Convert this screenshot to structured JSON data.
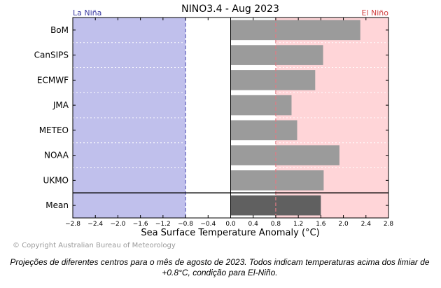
{
  "chart_data": {
    "type": "bar",
    "orientation": "horizontal",
    "title": "NINO3.4 - Aug 2023",
    "xlabel": "Sea Surface Temperature Anomaly (°C)",
    "ylabel": "",
    "xlim": [
      -2.8,
      2.8
    ],
    "xticks": [
      -2.8,
      -2.4,
      -2.0,
      -1.6,
      -1.2,
      -0.8,
      -0.4,
      0.0,
      0.4,
      0.8,
      1.2,
      1.6,
      2.0,
      2.4,
      2.8
    ],
    "xtick_labels": [
      "−2.8",
      "−2.4",
      "−2.0",
      "−1.6",
      "−1.2",
      "−0.8",
      "−0.4",
      "0.0",
      "0.4",
      "0.8",
      "1.2",
      "1.6",
      "2.0",
      "2.4",
      "2.8"
    ],
    "categories": [
      "BoM",
      "CanSIPS",
      "ECMWF",
      "JMA",
      "METEO",
      "NOAA",
      "UKMO",
      "Mean"
    ],
    "values": [
      2.3,
      1.64,
      1.5,
      1.08,
      1.18,
      1.93,
      1.65,
      1.6
    ],
    "thresholds": {
      "la_nina": -0.8,
      "el_nino": 0.8
    },
    "regions": [
      {
        "label": "La Niña",
        "from": -2.8,
        "to": -0.8,
        "color": "#c0c0ec",
        "label_color": "#3a3aa0"
      },
      {
        "label": "El Niño",
        "from": 0.8,
        "to": 2.8,
        "color": "#ffd5d8",
        "label_color": "#d04040"
      }
    ],
    "bar_color": "#9b9b9b",
    "mean_bar_color": "#606060",
    "grid": "horizontal dotted"
  },
  "copyright": "© Copyright Australian Bureau of Meteorology",
  "caption": "Projeções de diferentes centros para o mês de agosto de 2023. Todos indicam temperaturas acima dos limiar de +0.8°C, condição para El-Niño."
}
